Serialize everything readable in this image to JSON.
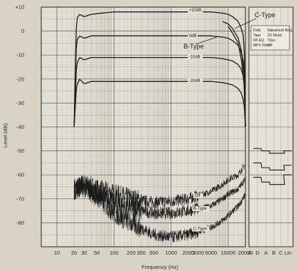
{
  "chart_data": {
    "type": "line",
    "xlabel": "Frequency (Hz)",
    "ylabel": "Level (dB)",
    "x_scale": "log",
    "xlim": [
      10,
      20000
    ],
    "ylim": [
      -90,
      10
    ],
    "x_ticks": [
      10,
      20,
      30,
      50,
      100,
      200,
      300,
      500,
      1000,
      2000,
      3000,
      5000,
      10000,
      20000
    ],
    "x_tick_labels": [
      "10",
      "20",
      "30",
      "50",
      "100",
      "200",
      "300",
      "500",
      "1000",
      "2000",
      "3000",
      "5000",
      "10000",
      "20000"
    ],
    "y_ticks": [
      10,
      0,
      -10,
      -20,
      -30,
      -40,
      -50,
      -60,
      -70,
      -80
    ],
    "y_tick_labels": [
      "+10",
      "0",
      "-10",
      "-20",
      "-30",
      "-40",
      "-50",
      "-60",
      "-70",
      "-80"
    ],
    "extra_ticks": [
      "A",
      "D",
      "A",
      "B",
      "C",
      "Lin"
    ],
    "grid": true,
    "series": [
      {
        "name": "+10dB",
        "x": [
          20,
          22,
          25,
          30,
          40,
          60,
          100,
          200,
          500,
          1000,
          2000,
          5000,
          8000,
          10000,
          12000,
          15000,
          17000,
          19000,
          20000
        ],
        "y": [
          -40,
          5,
          7,
          6,
          7,
          7.5,
          8,
          8,
          8,
          8,
          8,
          8,
          7.5,
          7,
          6,
          4,
          1,
          -3,
          -40
        ]
      },
      {
        "name": "0dB",
        "x": [
          20,
          22,
          25,
          30,
          40,
          60,
          100,
          200,
          500,
          1000,
          2000,
          5000,
          8000,
          10000,
          12000,
          15000,
          17000,
          19000,
          20000
        ],
        "y": [
          -40,
          -4,
          -2,
          -3,
          -2,
          -2,
          -2,
          -2,
          -2,
          -2,
          -2,
          -2,
          -2.5,
          -3,
          -4,
          -6,
          -9,
          -14,
          -40
        ]
      },
      {
        "name": "-10dB",
        "x": [
          20,
          22,
          25,
          30,
          40,
          60,
          100,
          200,
          500,
          1000,
          2000,
          5000,
          8000,
          10000,
          12000,
          15000,
          17000,
          19000,
          20000
        ],
        "y": [
          -40,
          -14,
          -11,
          -12,
          -11,
          -11,
          -11,
          -11,
          -11,
          -11,
          -11,
          -11,
          -11.5,
          -12,
          -12.5,
          -14,
          -16,
          -20,
          -40
        ]
      },
      {
        "name": "-20dB",
        "x": [
          20,
          22,
          25,
          30,
          40,
          60,
          100,
          200,
          500,
          1000,
          2000,
          5000,
          8000,
          10000,
          12000,
          15000,
          17000,
          19000,
          20000
        ],
        "y": [
          -40,
          -23,
          -20,
          -22,
          -21,
          -21,
          -21,
          -21,
          -21,
          -21,
          -21,
          -21,
          -21.5,
          -22,
          -22.5,
          -24,
          -26,
          -30,
          -40
        ]
      },
      {
        "name": "B-Type",
        "x": [
          8000,
          10000,
          12000,
          15000,
          17000,
          19000,
          20000
        ],
        "y": [
          4,
          3,
          1,
          -3,
          -8,
          -18,
          -40
        ]
      },
      {
        "name": "C-Type",
        "x": [
          10000,
          12000,
          15000,
          17000,
          19000,
          20000
        ],
        "y": [
          2,
          -1,
          -5,
          -12,
          -22,
          -40
        ]
      },
      {
        "name": "Off",
        "x": [
          20,
          30,
          50,
          100,
          200,
          500,
          1000,
          2000,
          5000,
          8000,
          10000,
          15000,
          18000,
          20000
        ],
        "y": [
          -66,
          -64,
          -66,
          -68,
          -70,
          -71.5,
          -71,
          -70,
          -67,
          -64,
          -62,
          -60,
          -57,
          -56
        ]
      },
      {
        "name": "B-Type",
        "x": [
          20,
          30,
          50,
          100,
          200,
          500,
          1000,
          2000,
          5000,
          8000,
          10000,
          15000,
          18000,
          20000
        ],
        "y": [
          -66,
          -64,
          -68,
          -72,
          -74,
          -76,
          -76,
          -75,
          -73,
          -70,
          -68,
          -66,
          -63,
          -62
        ]
      },
      {
        "name": "C-Type",
        "x": [
          20,
          30,
          50,
          100,
          200,
          500,
          1000,
          2000,
          5000,
          8000,
          10000,
          15000,
          18000,
          20000
        ],
        "y": [
          -66,
          -65,
          -69,
          -76,
          -80,
          -85,
          -86,
          -85,
          -82,
          -79,
          -77,
          -73,
          -70,
          -68
        ]
      }
    ],
    "weighted_levels": [
      {
        "column": "D",
        "values": [
          -49,
          -55,
          -61
        ]
      },
      {
        "column": "A",
        "values": [
          -50,
          -57,
          -63
        ]
      },
      {
        "column": "B",
        "values": [
          -51,
          -58,
          -64
        ]
      },
      {
        "column": "C",
        "values": [
          -51,
          -58,
          -64
        ]
      },
      {
        "column": "Lin",
        "values": [
          -50,
          -56,
          -60
        ]
      }
    ],
    "annotations": {
      "c_type_label": "C-Type",
      "b_type_label": "B-Type",
      "curve_labels": {
        "plus10": "+10dB",
        "zero": "0dB",
        "minus10": "-10dB",
        "minus20": "-20dB",
        "off": "Off",
        "b_type": "B-Type",
        "c_type": "C-Type"
      }
    },
    "legend": {
      "placement": "top-right",
      "rows": [
        {
          "key": "Dolb.",
          "value": "Nakamichi Bd.1"
        },
        {
          "key": "Tape",
          "value": "ZX Metal"
        },
        {
          "key": "FB EQ",
          "value": "70μs"
        },
        {
          "key": "MPX Filter",
          "value": "Off"
        }
      ]
    }
  }
}
